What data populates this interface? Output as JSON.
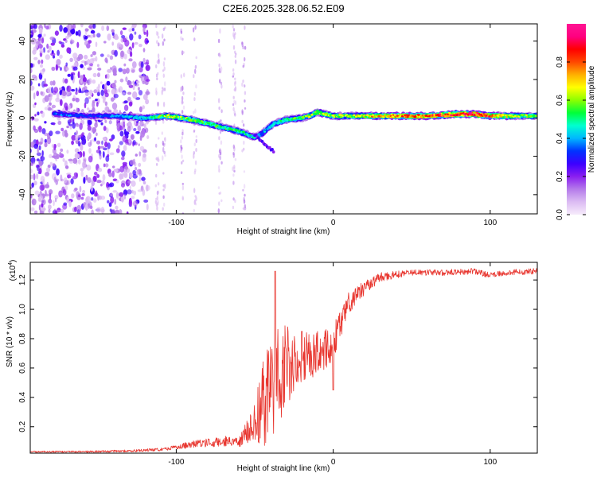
{
  "title": "C2E6.2025.328.06.52.E09",
  "colors": {
    "snr_line": "#e8362f",
    "axis": "#000000",
    "background": "#ffffff",
    "colormap": [
      "#f6ecfb",
      "#dcbcf3",
      "#b57bea",
      "#8a1ff0",
      "#3c00ff",
      "#0033ff",
      "#00b7ff",
      "#00ffd0",
      "#00ff3a",
      "#8cff00",
      "#ffff00",
      "#ffb000",
      "#ff4800",
      "#ff0000",
      "#ff0080",
      "#ff1493"
    ]
  },
  "chart_data": [
    {
      "type": "heatmap",
      "title": "C2E6.2025.328.06.52.E09",
      "xlabel": "Height of straight line (km)",
      "ylabel": "Frequency (Hz)",
      "xlim": [
        -193,
        130
      ],
      "ylim": [
        -50,
        49
      ],
      "xticks": [
        -100,
        0,
        100
      ],
      "xtick_labels": [
        "-100",
        "0",
        "100"
      ],
      "yticks": [
        -40,
        -20,
        0,
        20,
        40
      ],
      "ytick_labels": [
        "-40",
        "-20",
        "0",
        "20",
        "40"
      ],
      "colorbar": {
        "label": "Normalized spectral amplitude",
        "range": [
          0,
          1
        ],
        "ticks": [
          0.0,
          0.2,
          0.4,
          0.6,
          0.8
        ],
        "tick_labels": [
          "0.0",
          "0.2",
          "0.4",
          "0.6",
          "0.8"
        ]
      },
      "ridge": {
        "x": [
          -175,
          -155,
          -140,
          -120,
          -105,
          -90,
          -80,
          -70,
          -60,
          -50,
          -45,
          -38,
          -30,
          -20,
          -15,
          -10,
          0,
          10,
          20,
          40,
          60,
          80,
          90,
          100,
          115,
          130
        ],
        "y": [
          2,
          1,
          1,
          0,
          1,
          -1,
          -3,
          -5,
          -7,
          -10,
          -8,
          -3,
          -1,
          0,
          1,
          3,
          1,
          1,
          1,
          1,
          1,
          2,
          2,
          1,
          1,
          1
        ],
        "amplitude": [
          0.35,
          0.3,
          0.35,
          0.45,
          0.6,
          0.55,
          0.55,
          0.5,
          0.5,
          0.45,
          0.4,
          0.45,
          0.5,
          0.55,
          0.6,
          0.6,
          0.6,
          0.6,
          0.65,
          0.75,
          0.8,
          0.85,
          0.9,
          0.8,
          0.6,
          0.55
        ]
      },
      "noise_region_x": [
        -193,
        -118
      ]
    },
    {
      "type": "line",
      "xlabel": "Height of straight line (km)",
      "ylabel": "SNR (10 * v/v)",
      "scale_label": "(x10",
      "scale_exponent": "4",
      "scale_suffix": ")",
      "xlim": [
        -193,
        130
      ],
      "ylim": [
        0.02,
        1.32
      ],
      "xticks": [
        -100,
        0,
        100
      ],
      "xtick_labels": [
        "-100",
        "0",
        "100"
      ],
      "yticks": [
        0.2,
        0.4,
        0.6,
        0.8,
        1.0,
        1.2
      ],
      "ytick_labels": [
        "0.2",
        "0.4",
        "0.6",
        "0.8",
        "1.0",
        "1.2"
      ],
      "series": [
        {
          "name": "SNR",
          "x": [
            -193,
            -160,
            -130,
            -110,
            -100,
            -90,
            -80,
            -70,
            -60,
            -52,
            -45,
            -40,
            -35,
            -30,
            -25,
            -20,
            -10,
            -5,
            0,
            5,
            10,
            20,
            30,
            50,
            70,
            90,
            100,
            110,
            130
          ],
          "y": [
            0.03,
            0.03,
            0.035,
            0.045,
            0.06,
            0.08,
            0.09,
            0.1,
            0.1,
            0.2,
            0.35,
            0.45,
            0.55,
            0.6,
            0.62,
            0.66,
            0.7,
            0.72,
            0.78,
            0.9,
            1.05,
            1.15,
            1.22,
            1.25,
            1.25,
            1.26,
            1.23,
            1.25,
            1.26
          ],
          "spread": [
            0.005,
            0.006,
            0.008,
            0.01,
            0.015,
            0.025,
            0.03,
            0.035,
            0.04,
            0.1,
            0.3,
            0.35,
            0.35,
            0.3,
            0.22,
            0.18,
            0.15,
            0.14,
            0.12,
            0.1,
            0.08,
            0.05,
            0.03,
            0.02,
            0.02,
            0.02,
            0.02,
            0.02,
            0.02
          ],
          "peaks": [
            {
              "x": -37,
              "y": 1.26
            },
            {
              "x": -20,
              "y": 0.85
            },
            {
              "x": 0,
              "y": 0.45
            }
          ]
        }
      ]
    }
  ]
}
